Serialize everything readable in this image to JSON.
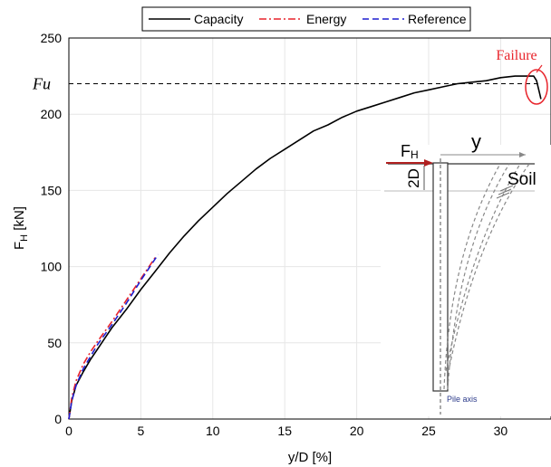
{
  "chart_data": {
    "type": "line",
    "xlabel": "y/D [%]",
    "ylabel_main": "F",
    "ylabel_sub": "H",
    "ylabel_unit": " [kN]",
    "xlim": [
      0,
      33.5
    ],
    "ylim": [
      0,
      250
    ],
    "xticks": [
      0,
      5,
      10,
      15,
      20,
      25,
      30
    ],
    "yticks": [
      0,
      50,
      100,
      150,
      200,
      250
    ],
    "grid": true,
    "legend_position": "top-center",
    "series": [
      {
        "name": "Capacity",
        "color": "#000000",
        "style": "solid",
        "x": [
          0,
          0.2,
          0.5,
          1,
          1.5,
          2,
          2.5,
          3,
          3.5,
          4,
          5,
          6,
          7,
          8,
          9,
          10,
          11,
          12,
          13,
          14,
          15,
          16,
          17,
          18,
          19,
          20,
          21,
          22,
          23,
          24,
          25,
          26,
          27,
          28,
          29,
          30,
          31,
          31.5,
          32,
          32.3,
          32.5,
          32.6,
          32.7,
          32.8
        ],
        "y": [
          0,
          12,
          22,
          31,
          39,
          46,
          53,
          60,
          66,
          72,
          85,
          97,
          109,
          120,
          130,
          139,
          148,
          156,
          164,
          171,
          177,
          183,
          189,
          193,
          198,
          202,
          205,
          208,
          211,
          214,
          216,
          218,
          220,
          221,
          222,
          224,
          225,
          225,
          225,
          225,
          222,
          218,
          214,
          210
        ]
      },
      {
        "name": "Energy",
        "color": "#e8242b",
        "style": "dashdot",
        "x": [
          0,
          0.2,
          0.5,
          1,
          1.5,
          2,
          3,
          4,
          5,
          6
        ],
        "y": [
          0,
          14,
          25,
          36,
          44,
          51,
          64,
          78,
          92,
          106
        ]
      },
      {
        "name": "Reference",
        "color": "#1f1fcf",
        "style": "dashed",
        "x": [
          0,
          0.2,
          0.5,
          1,
          1.5,
          2,
          3,
          4,
          5,
          6.2
        ],
        "y": [
          0,
          12,
          22,
          33,
          41,
          49,
          62,
          76,
          91,
          108
        ]
      }
    ],
    "fu_label": "Fu",
    "fu_value": 220,
    "failure_label": "Failure",
    "failure_color": "#e8242b"
  },
  "inset": {
    "force_label": "F",
    "force_sub": "H",
    "y_label": "y",
    "depth_label": "2D",
    "soil_label": "Soil",
    "pile_axis_label": "Pile axis",
    "pile_axis_color": "#2b3a8a",
    "arrow_color": "#b02020"
  }
}
